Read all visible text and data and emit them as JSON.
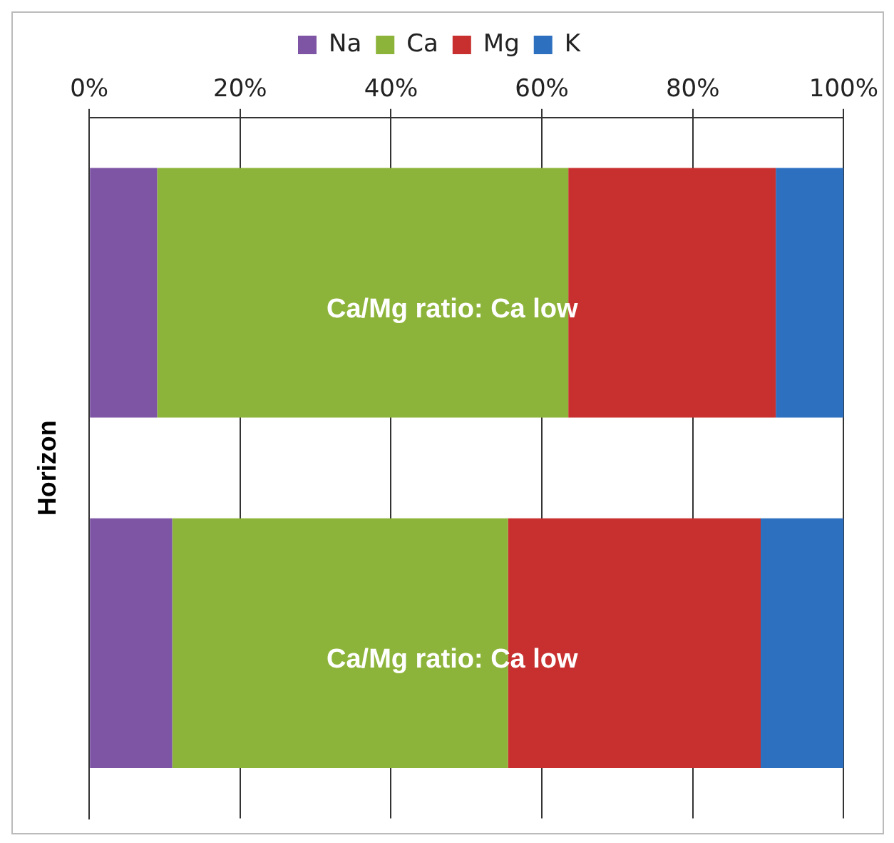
{
  "chart_data": {
    "type": "bar",
    "orientation": "horizontal",
    "stacked": true,
    "ylabel": "Horizon",
    "categories": [
      null,
      null
    ],
    "series": [
      {
        "name": "Na",
        "color": "#7e55a4",
        "values": [
          9,
          11
        ]
      },
      {
        "name": "Ca",
        "color": "#8db43a",
        "values": [
          54.5,
          44.5
        ]
      },
      {
        "name": "Mg",
        "color": "#c8302f",
        "values": [
          27.5,
          33.5
        ]
      },
      {
        "name": "K",
        "color": "#2e70c0",
        "values": [
          9,
          11
        ]
      }
    ],
    "xlim": [
      0,
      100
    ],
    "xticks": [
      {
        "value": 0,
        "label": "0%"
      },
      {
        "value": 20,
        "label": "20%"
      },
      {
        "value": 40,
        "label": "40%"
      },
      {
        "value": 60,
        "label": "60%"
      },
      {
        "value": 80,
        "label": "80%"
      },
      {
        "value": 100,
        "label": "100%"
      }
    ],
    "grid": "x",
    "legend": "top",
    "annotations": [
      "Ca/Mg ratio: Ca low",
      "Ca/Mg ratio: Ca low"
    ]
  }
}
